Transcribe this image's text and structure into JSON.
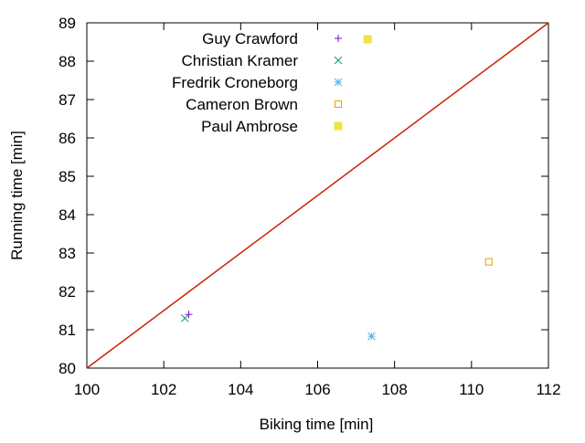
{
  "chart_data": {
    "type": "scatter",
    "xlabel": "Biking time [min]",
    "ylabel": "Running time [min]",
    "xlim": [
      100,
      112
    ],
    "ylim": [
      80,
      89
    ],
    "xticks": [
      "100",
      "102",
      "104",
      "106",
      "108",
      "110",
      "112"
    ],
    "yticks": [
      "80",
      "81",
      "82",
      "83",
      "84",
      "85",
      "86",
      "87",
      "88",
      "89"
    ],
    "grid": false,
    "legend_position": "top-center",
    "reference_line": {
      "from": [
        100,
        80
      ],
      "to": [
        112,
        89
      ],
      "color": "#cc2200"
    },
    "series": [
      {
        "name": "Guy Crawford",
        "marker": "plus",
        "color": "#9400d3",
        "x": [
          102.65
        ],
        "y": [
          81.4
        ]
      },
      {
        "name": "Christian Kramer",
        "marker": "cross",
        "color": "#009e73",
        "x": [
          102.55
        ],
        "y": [
          81.3
        ]
      },
      {
        "name": "Fredrik Croneborg",
        "marker": "asterisk",
        "color": "#56b4e9",
        "x": [
          107.4
        ],
        "y": [
          80.83
        ]
      },
      {
        "name": "Cameron Brown",
        "marker": "open-square",
        "color": "#e69f00",
        "x": [
          110.45
        ],
        "y": [
          82.77
        ]
      },
      {
        "name": "Paul Ambrose",
        "marker": "filled-square",
        "color": "#f0e442",
        "x": [
          107.3
        ],
        "y": [
          88.57
        ]
      }
    ]
  }
}
